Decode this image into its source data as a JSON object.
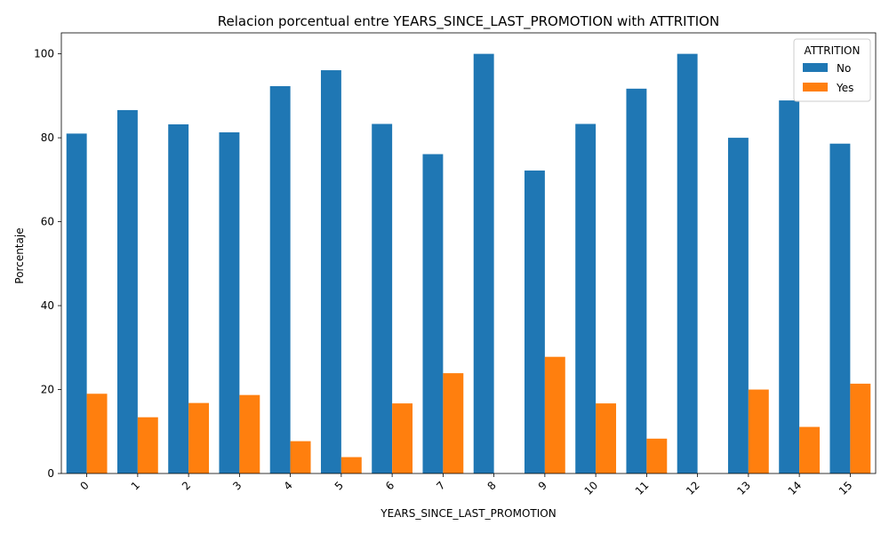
{
  "chart_data": {
    "type": "bar",
    "title": "Relacion porcentual entre YEARS_SINCE_LAST_PROMOTION with ATTRITION",
    "xlabel": "YEARS_SINCE_LAST_PROMOTION",
    "ylabel": "Porcentaje",
    "ylim": [
      0,
      105
    ],
    "yticks": [
      "0",
      "20",
      "40",
      "60",
      "80",
      "100"
    ],
    "categories": [
      "0",
      "1",
      "2",
      "3",
      "4",
      "5",
      "6",
      "7",
      "8",
      "9",
      "10",
      "11",
      "12",
      "13",
      "14",
      "15"
    ],
    "legend": {
      "title": "ATTRITION",
      "position": "top-right"
    },
    "series": [
      {
        "name": "No",
        "color": "#1f77b4",
        "values": [
          81.0,
          86.6,
          83.2,
          81.3,
          92.3,
          96.1,
          83.3,
          76.1,
          100.0,
          72.2,
          83.3,
          91.7,
          100.0,
          80.0,
          88.9,
          78.6
        ]
      },
      {
        "name": "Yes",
        "color": "#ff7f0e",
        "values": [
          19.0,
          13.4,
          16.8,
          18.7,
          7.7,
          3.9,
          16.7,
          23.9,
          0.0,
          27.8,
          16.7,
          8.3,
          0.0,
          20.0,
          11.1,
          21.4
        ]
      }
    ]
  }
}
